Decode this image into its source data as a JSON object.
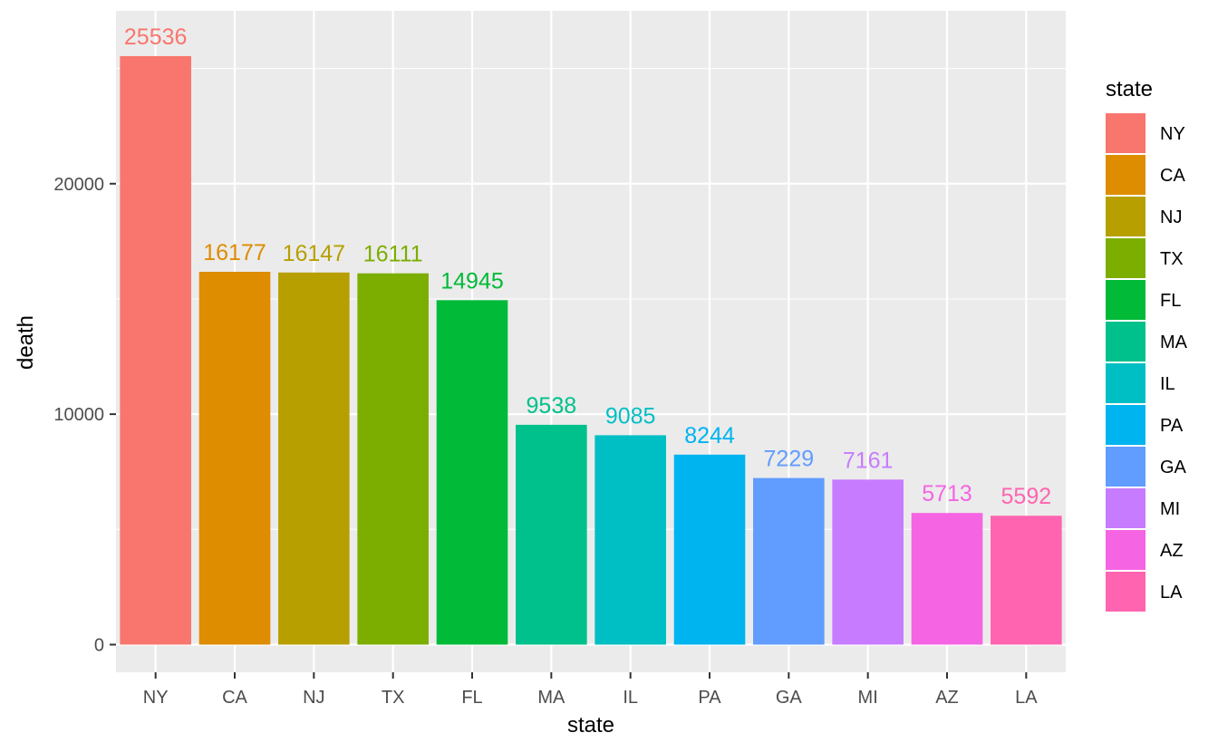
{
  "chart_data": {
    "type": "bar",
    "categories": [
      "NY",
      "CA",
      "NJ",
      "TX",
      "FL",
      "MA",
      "IL",
      "PA",
      "GA",
      "MI",
      "AZ",
      "LA"
    ],
    "values": [
      25536,
      16177,
      16147,
      16111,
      14945,
      9538,
      9085,
      8244,
      7229,
      7161,
      5713,
      5592
    ],
    "colors": [
      "#F8766D",
      "#DE8C00",
      "#B79F00",
      "#7CAE00",
      "#00BA38",
      "#00C08B",
      "#00BFC4",
      "#00B4F0",
      "#619CFF",
      "#C77CFF",
      "#F564E3",
      "#FF64B0"
    ],
    "xlabel": "state",
    "ylabel": "death",
    "yticks": [
      0,
      10000,
      20000
    ],
    "ylim": [
      -1200,
      27500
    ],
    "legend_title": "state",
    "legend_position": "right",
    "grid": true,
    "panel_background": "#EBEBEB"
  }
}
